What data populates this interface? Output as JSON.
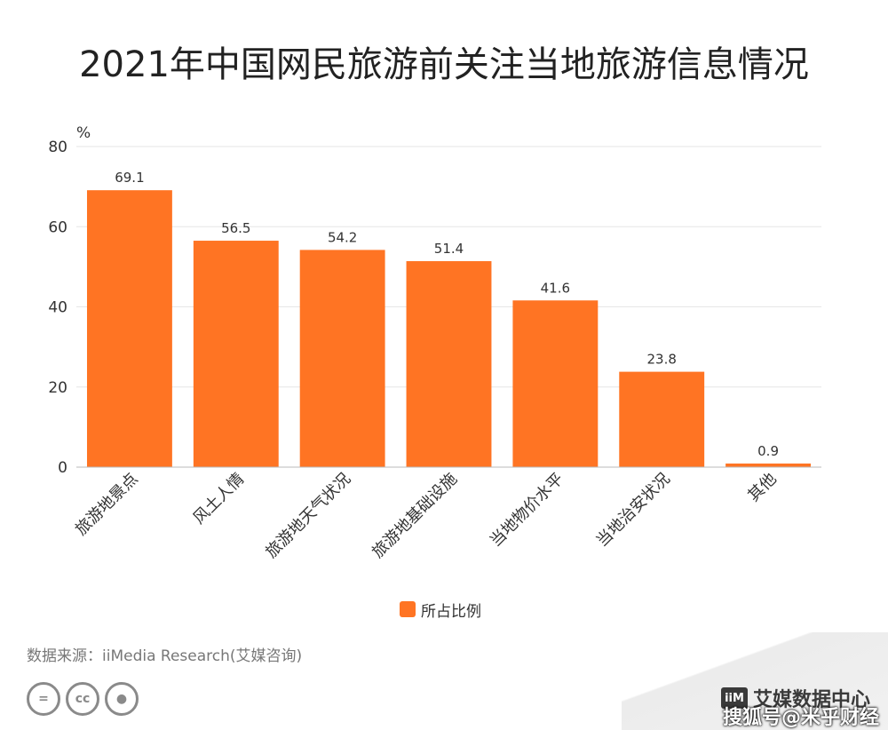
{
  "title": "2021年中国网民旅游前关注当地旅游信息情况",
  "chart_data": {
    "type": "bar",
    "categories": [
      "旅游地景点",
      "风土人情",
      "旅游地天气状况",
      "旅游地基础设施",
      "当地物价水平",
      "当地治安状况",
      "其他"
    ],
    "series": [
      {
        "name": "所占比例",
        "values": [
          69.1,
          56.5,
          54.2,
          51.4,
          41.6,
          23.8,
          0.9
        ]
      }
    ],
    "data_labels": [
      "69.1",
      "56.5",
      "54.2",
      "51.4",
      "41.6",
      "23.8",
      "0.9"
    ],
    "ylabel": "%",
    "ylim": [
      0,
      80
    ],
    "yticks": [
      0,
      20,
      40,
      60,
      80
    ],
    "grid": true,
    "legend_position": "bottom-center",
    "bar_color": "#FF7423"
  },
  "legend": {
    "label": "所占比例"
  },
  "source": "数据来源：iiMedia Research(艾媒咨询)",
  "license_icons": [
    "equals-icon",
    "cc-icon",
    "person-icon"
  ],
  "brand": {
    "name": "艾媒数据中心",
    "logo_text": "iiM"
  },
  "watermark": "搜狐号@米乎财经"
}
